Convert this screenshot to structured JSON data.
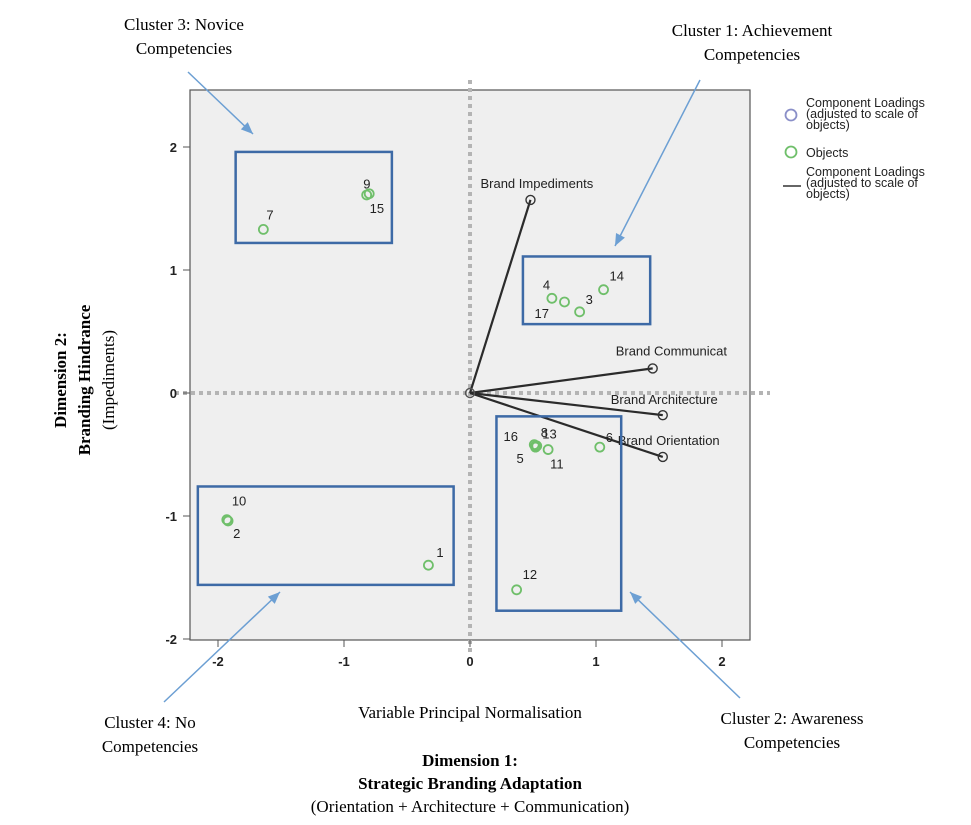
{
  "chart_data": {
    "type": "scatter",
    "subtitle": "Variable Principal Normalisation",
    "xlabel": {
      "line1": "Dimension 1:",
      "line2": "Strategic Branding Adaptation",
      "line3": "(Orientation + Architecture + Communication)"
    },
    "ylabel": {
      "line1": "Dimension 2:",
      "line2": "Branding Hindrance",
      "line3": "(Impediments)"
    },
    "xlim": [
      -2.2,
      2.2
    ],
    "ylim": [
      -2.05,
      2.45
    ],
    "x_ticks": [
      {
        "value": -2,
        "label": "-2"
      },
      {
        "value": -1,
        "label": "-1"
      },
      {
        "value": 0,
        "label": "0"
      },
      {
        "value": 1,
        "label": "1"
      },
      {
        "value": 2,
        "label": "2"
      }
    ],
    "y_ticks": [
      {
        "value": 2,
        "label": "2"
      },
      {
        "value": 1,
        "label": "1"
      },
      {
        "value": 0,
        "label": "0"
      },
      {
        "value": -1,
        "label": "-1"
      },
      {
        "value": -2,
        "label": "-2"
      }
    ],
    "grid": false,
    "reference_lines": {
      "x": 0,
      "y": 0,
      "style": "dotted"
    },
    "legend": {
      "position": "right",
      "entries": [
        {
          "label_lines": [
            "Component Loadings",
            "(adjusted to scale of",
            "objects)"
          ],
          "marker": "circle",
          "color": "#8a8fc8"
        },
        {
          "label_lines": [
            "Objects"
          ],
          "marker": "circle",
          "color": "#6fbf6a"
        },
        {
          "label_lines": [
            "Component Loadings",
            "(adjusted to scale of",
            "objects)"
          ],
          "marker": "line",
          "color": "#333333"
        }
      ]
    },
    "loadings": [
      {
        "name": "Brand Impediments",
        "x": 0.48,
        "y": 1.57
      },
      {
        "name": "Brand Communicat",
        "x": 1.45,
        "y": 0.2
      },
      {
        "name": "Brand Architecture",
        "x": 1.53,
        "y": -0.18
      },
      {
        "name": "Brand Orientation",
        "x": 1.53,
        "y": -0.52
      }
    ],
    "objects": [
      {
        "label": "1",
        "x": -0.33,
        "y": -1.4
      },
      {
        "label": "2",
        "x": -1.92,
        "y": -1.04
      },
      {
        "label": "3",
        "x": 0.87,
        "y": 0.66
      },
      {
        "label": "4",
        "x": 0.65,
        "y": 0.77
      },
      {
        "label": "5",
        "x": 0.52,
        "y": -0.43
      },
      {
        "label": "6",
        "x": 1.03,
        "y": -0.44
      },
      {
        "label": "7",
        "x": -1.64,
        "y": 1.33
      },
      {
        "label": "8",
        "x": 0.53,
        "y": -0.43
      },
      {
        "label": "9",
        "x": -0.8,
        "y": 1.62
      },
      {
        "label": "10",
        "x": -1.93,
        "y": -1.03
      },
      {
        "label": "11",
        "x": 0.62,
        "y": -0.46
      },
      {
        "label": "12",
        "x": 0.37,
        "y": -1.6
      },
      {
        "label": "13",
        "x": 0.51,
        "y": -0.42
      },
      {
        "label": "14",
        "x": 1.06,
        "y": 0.84
      },
      {
        "label": "15",
        "x": -0.82,
        "y": 1.61
      },
      {
        "label": "16",
        "x": 0.52,
        "y": -0.44
      },
      {
        "label": "17",
        "x": 0.75,
        "y": 0.74
      }
    ],
    "clusters": [
      {
        "name": "cluster-1",
        "label_lines": [
          "Cluster 1: Achievement",
          "Competencies"
        ],
        "box_x": [
          0.42,
          1.43
        ],
        "box_y": [
          0.56,
          1.11
        ]
      },
      {
        "name": "cluster-2",
        "label_lines": [
          "Cluster 2: Awareness",
          "Competencies"
        ],
        "box_x": [
          0.21,
          1.2
        ],
        "box_y": [
          -1.77,
          -0.19
        ]
      },
      {
        "name": "cluster-3",
        "label_lines": [
          "Cluster 3: Novice",
          "Competencies"
        ],
        "box_x": [
          -1.86,
          -0.62
        ],
        "box_y": [
          1.22,
          1.96
        ]
      },
      {
        "name": "cluster-4",
        "label_lines": [
          "Cluster 4: No",
          "Competencies"
        ],
        "box_x": [
          -2.16,
          -0.13
        ],
        "box_y": [
          -1.56,
          -0.76
        ]
      }
    ]
  }
}
